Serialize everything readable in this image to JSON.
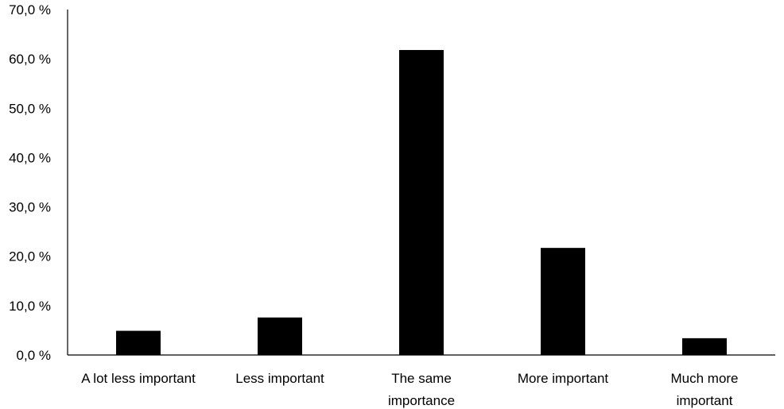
{
  "chart_data": {
    "type": "bar",
    "title": "",
    "xlabel": "",
    "ylabel": "",
    "categories": [
      [
        "A lot less important"
      ],
      [
        "Less important"
      ],
      [
        "The same",
        "importance"
      ],
      [
        "More important"
      ],
      [
        "Much more",
        "important"
      ]
    ],
    "values": [
      4.9,
      7.6,
      61.8,
      21.7,
      3.4
    ],
    "ylim": [
      0,
      70
    ],
    "yticks": [
      {
        "value": 0,
        "label": "0,0 %"
      },
      {
        "value": 10,
        "label": "10,0 %"
      },
      {
        "value": 20,
        "label": "20,0 %"
      },
      {
        "value": 30,
        "label": "30,0 %"
      },
      {
        "value": 40,
        "label": "40,0 %"
      },
      {
        "value": 50,
        "label": "50,0 %"
      },
      {
        "value": 60,
        "label": "60,0 %"
      },
      {
        "value": 70,
        "label": "70,0 %"
      }
    ],
    "grid": false,
    "legend": "none",
    "bar_color": "#000000"
  }
}
